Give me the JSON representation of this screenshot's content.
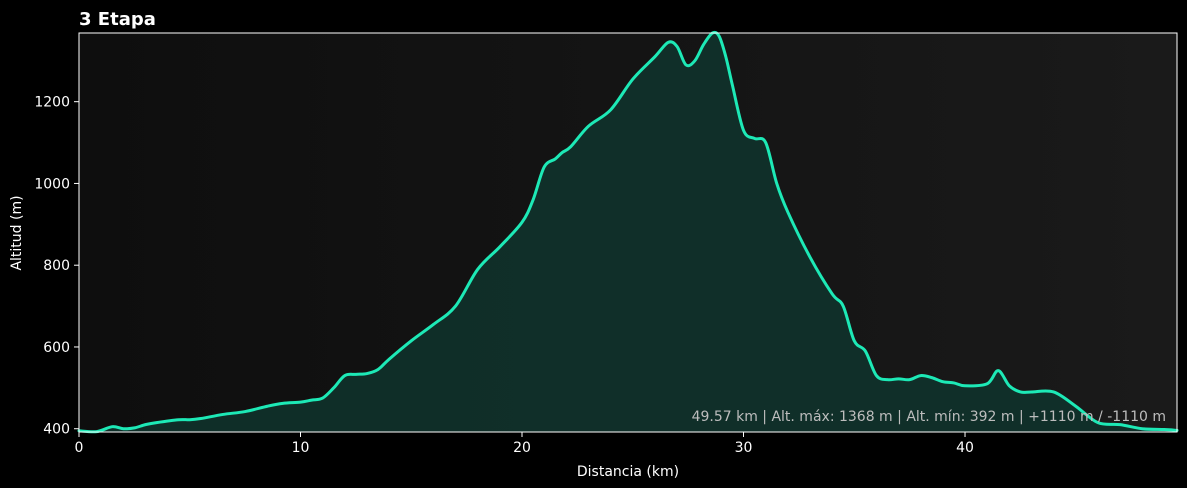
{
  "chart_data": {
    "type": "area",
    "title": "3 Etapa",
    "xlabel": "Distancia (km)",
    "ylabel": "Altitud (m)",
    "xlim": [
      0,
      49.57
    ],
    "ylim": [
      392,
      1368
    ],
    "x_ticks": [
      0,
      10,
      20,
      30,
      40
    ],
    "y_ticks": [
      400,
      600,
      800,
      1000,
      1200
    ],
    "grid": false,
    "summary": "49.57 km | Alt. máx: 1368 m | Alt. mín: 392 m | +1110 m / -1110 m",
    "colors": {
      "line": "#1de9b6",
      "fill": "#10302a",
      "plot_bg_left": "#0e0e0e",
      "plot_bg_right": "#1a1a1a",
      "page_bg": "#000000",
      "text": "#ffffff",
      "summary_text": "#bdbdbd"
    },
    "series": [
      {
        "x": [
          0,
          0.8,
          1.5,
          2.0,
          2.5,
          3.0,
          3.5,
          4.5,
          5.0,
          5.5,
          6.5,
          7.5,
          8.5,
          9.2,
          10.0,
          10.5,
          11.0,
          11.5,
          12.0,
          12.5,
          13.0,
          13.5,
          14.0,
          15.0,
          16.0,
          17.0,
          18.0,
          19.0,
          20.0,
          20.5,
          21.0,
          21.5,
          21.8,
          22.2,
          23.0,
          24.0,
          25.0,
          26.0,
          26.6,
          27.0,
          27.4,
          27.8,
          28.2,
          28.6,
          28.9,
          29.2,
          29.5,
          30.0,
          30.5,
          31.0,
          31.5,
          32.0,
          33.0,
          34.0,
          34.5,
          35.0,
          35.5,
          36.0,
          36.5,
          37.0,
          37.5,
          38.0,
          38.5,
          39.0,
          39.5,
          40.0,
          41.0,
          41.5,
          42.0,
          42.5,
          43.0,
          44.0,
          45.0,
          46.0,
          47.0,
          48.0,
          49.0,
          49.57
        ],
        "y": [
          395,
          393,
          405,
          400,
          402,
          410,
          415,
          422,
          422,
          425,
          435,
          442,
          455,
          462,
          465,
          470,
          475,
          500,
          530,
          533,
          535,
          545,
          570,
          615,
          655,
          700,
          790,
          845,
          905,
          960,
          1040,
          1060,
          1075,
          1090,
          1140,
          1180,
          1255,
          1310,
          1345,
          1335,
          1290,
          1300,
          1340,
          1368,
          1360,
          1310,
          1240,
          1130,
          1110,
          1100,
          1000,
          930,
          820,
          730,
          700,
          615,
          590,
          530,
          520,
          522,
          520,
          530,
          525,
          515,
          512,
          505,
          510,
          542,
          505,
          490,
          490,
          490,
          455,
          415,
          410,
          400,
          398,
          396
        ]
      }
    ]
  }
}
